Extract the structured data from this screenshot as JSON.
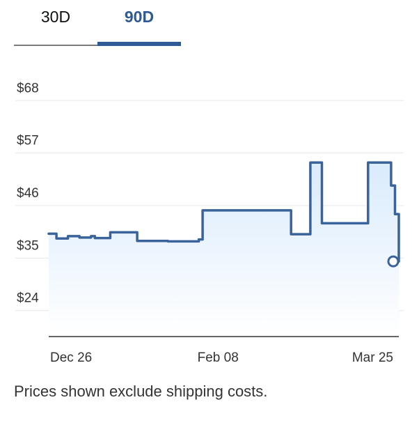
{
  "tabs": [
    {
      "label": "30D",
      "active": false
    },
    {
      "label": "90D",
      "active": true
    }
  ],
  "footnote": "Prices shown exclude shipping costs.",
  "colors": {
    "accent": "#2f5a94",
    "line": "#3a639b",
    "fill_top": "#d8eafc",
    "grid": "#e7e7e7"
  },
  "chart_data": {
    "type": "area",
    "step": true,
    "y_ticks": [
      {
        "value": 68,
        "label": "$68"
      },
      {
        "value": 57,
        "label": "$57"
      },
      {
        "value": 46,
        "label": "$46"
      },
      {
        "value": 35,
        "label": "$35"
      },
      {
        "value": 24,
        "label": "$24"
      }
    ],
    "ylim": [
      19,
      73
    ],
    "x_ticks": [
      {
        "date": "2024-12-26",
        "label": "Dec 26"
      },
      {
        "date": "2025-02-08",
        "label": "Feb 08"
      },
      {
        "date": "2025-03-25",
        "label": "Mar 25"
      }
    ],
    "xlim": [
      "2024-12-26",
      "2025-03-27"
    ],
    "grid": true,
    "series": [
      {
        "points": [
          {
            "date": "2024-12-26",
            "price": 40.1
          },
          {
            "date": "2024-12-28",
            "price": 39.1
          },
          {
            "date": "2024-12-31",
            "price": 39.6
          },
          {
            "date": "2025-01-03",
            "price": 39.3
          },
          {
            "date": "2025-01-06",
            "price": 39.6
          },
          {
            "date": "2025-01-07",
            "price": 39.2
          },
          {
            "date": "2025-01-11",
            "price": 40.4
          },
          {
            "date": "2025-01-18",
            "price": 38.6
          },
          {
            "date": "2025-01-26",
            "price": 38.5
          },
          {
            "date": "2025-02-03",
            "price": 38.9
          },
          {
            "date": "2025-02-04",
            "price": 45.0
          },
          {
            "date": "2025-02-27",
            "price": 40.0
          },
          {
            "date": "2025-03-04",
            "price": 55.0
          },
          {
            "date": "2025-03-07",
            "price": 42.3
          },
          {
            "date": "2025-03-19",
            "price": 55.0
          },
          {
            "date": "2025-03-25",
            "price": 50.2
          },
          {
            "date": "2025-03-26",
            "price": 44.2
          },
          {
            "date": "2025-03-27",
            "price": 34.3
          }
        ]
      }
    ]
  }
}
